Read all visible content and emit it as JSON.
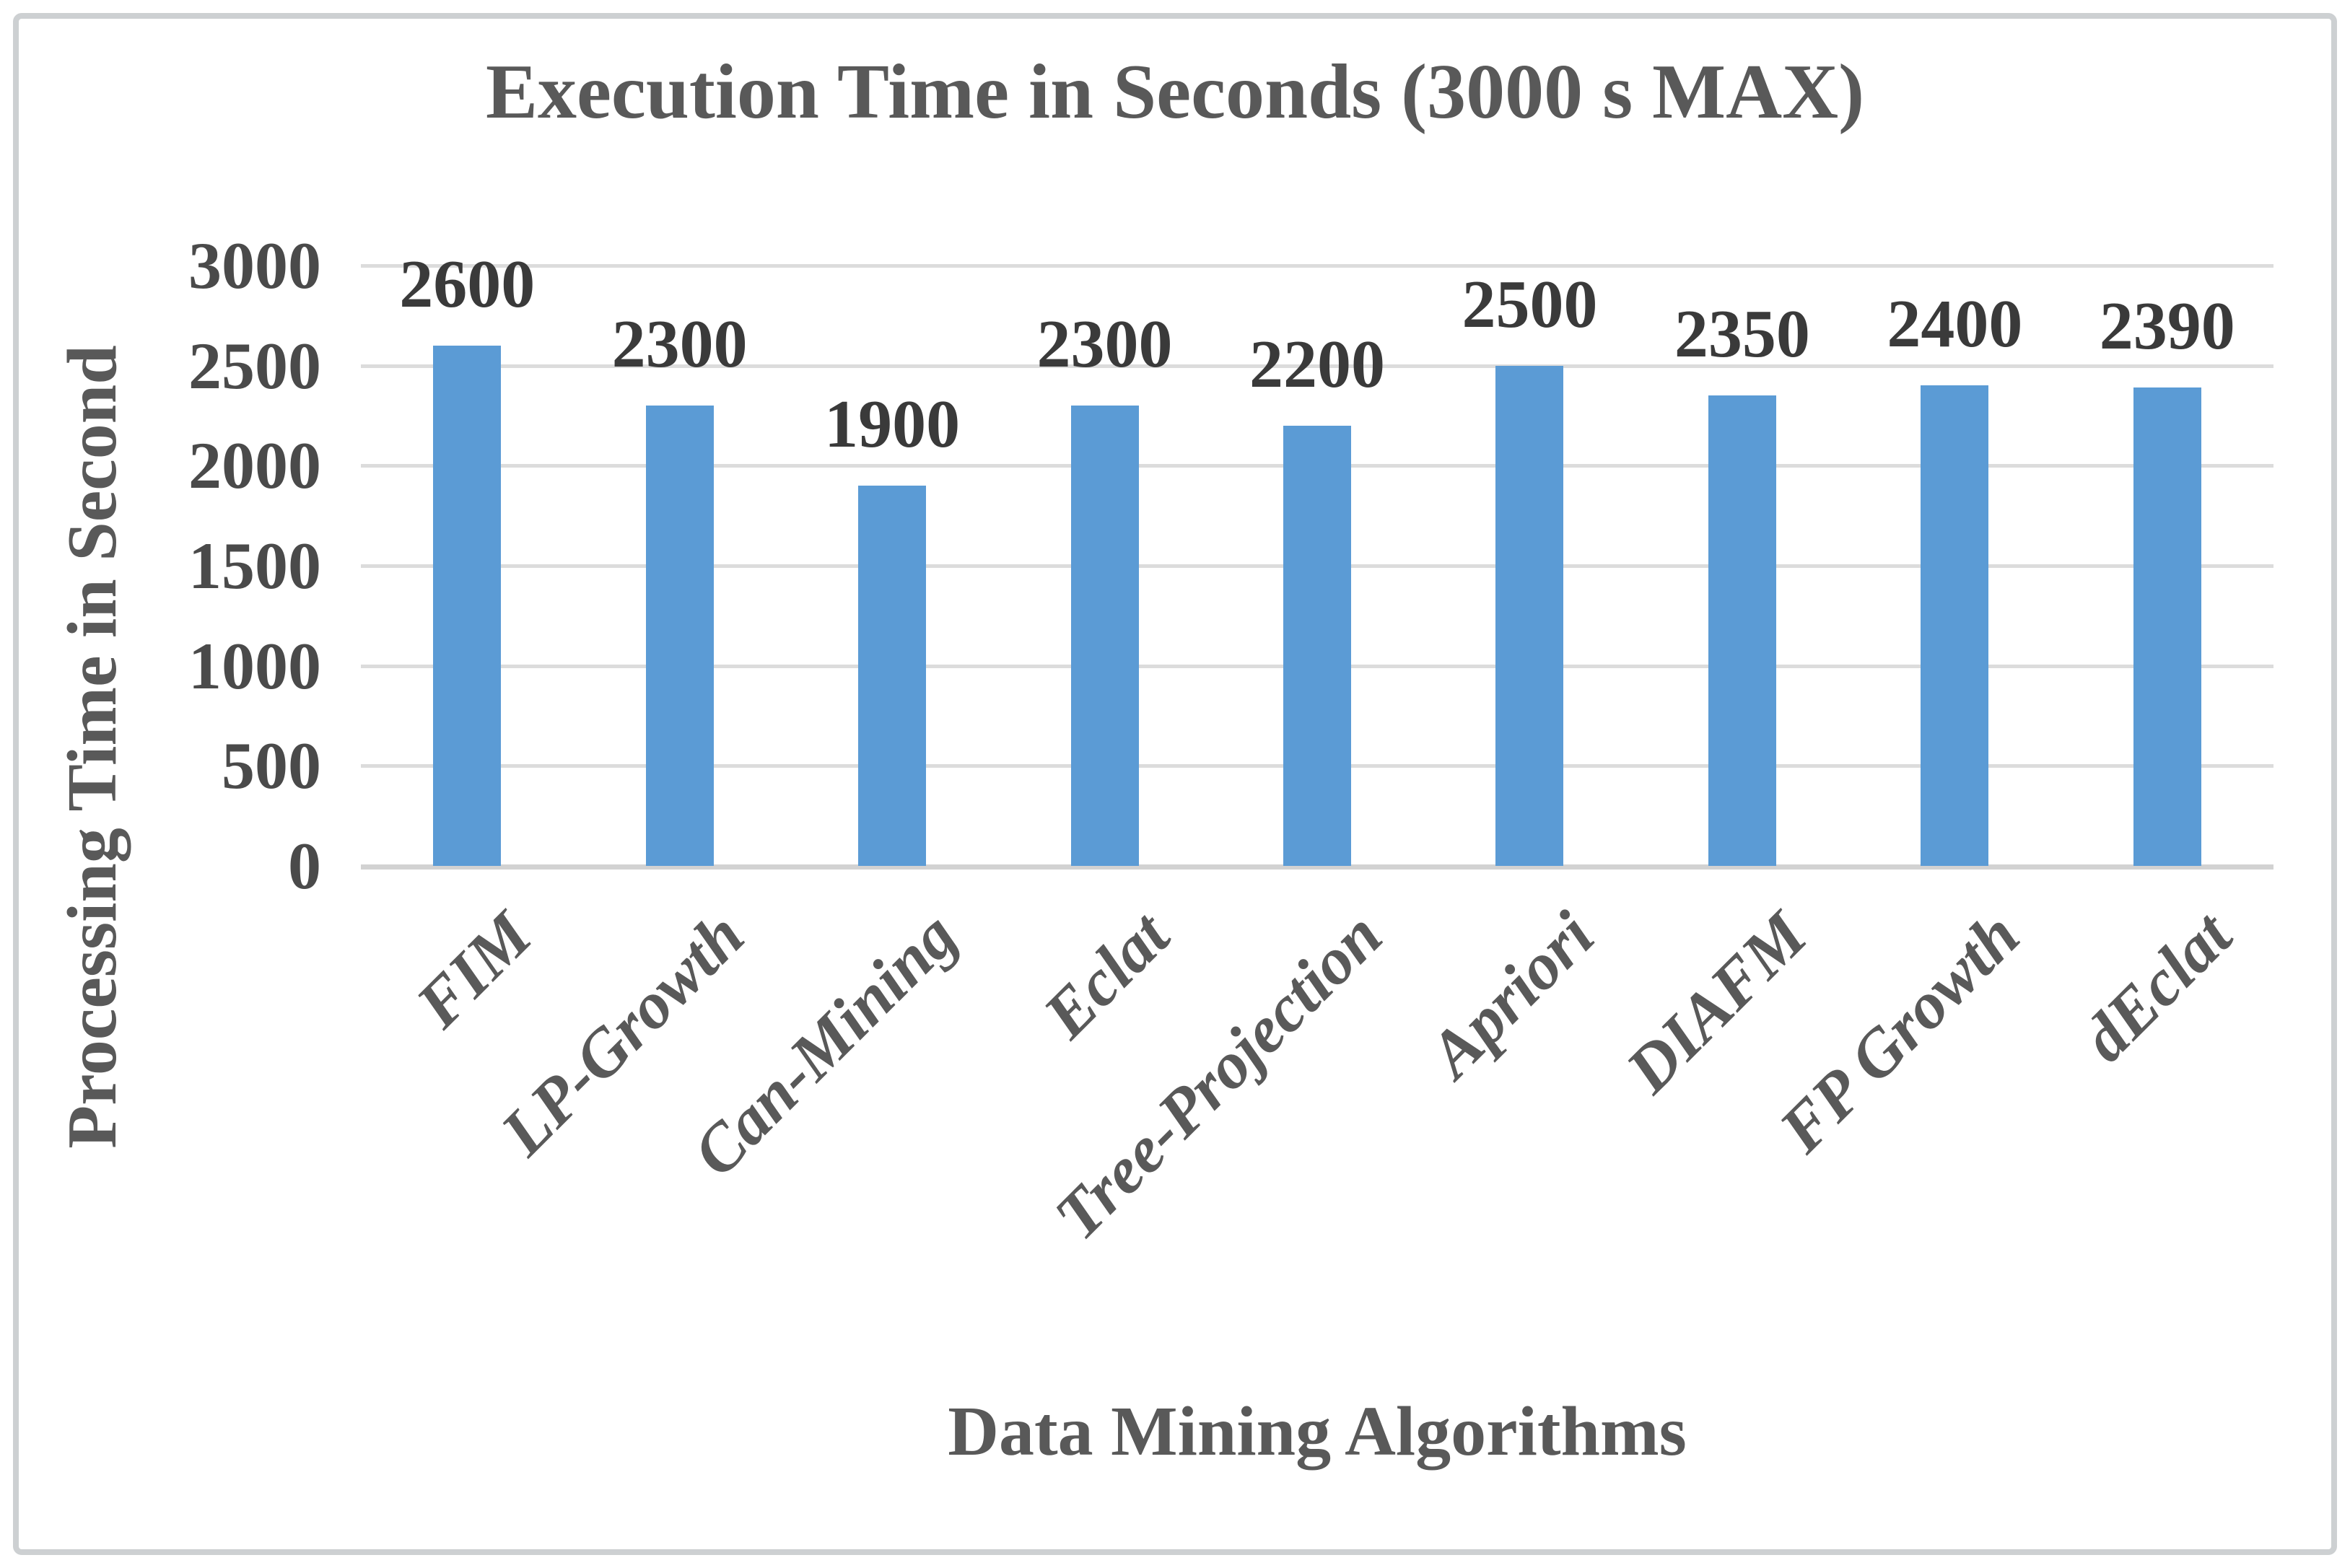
{
  "chart_data": {
    "type": "bar",
    "title": "Execution Time in Seconds (3000 s MAX)",
    "xlabel": "Data Mining Algorithms",
    "ylabel": "Processing Time in Second",
    "categories": [
      "FIM",
      "LP-Growth",
      "Can-Mining",
      "Eclat",
      "Tree-Projection",
      "Apriori",
      "DIAFM",
      "FP Growth",
      "dEclat"
    ],
    "values": [
      2600,
      2300,
      1900,
      2300,
      2200,
      2500,
      2350,
      2400,
      2390
    ],
    "data_labels": [
      "2600",
      "2300",
      "1900",
      "2300",
      "2200",
      "2500",
      "2350",
      "2400",
      "2390"
    ],
    "ylim": [
      0,
      3000
    ],
    "yticks": [
      3000,
      2500,
      2000,
      1500,
      1000,
      500,
      0
    ],
    "grid": true,
    "legend": false,
    "bar_color": "#5b9bd5",
    "gridline_color": "#dcdcdc",
    "title_color": "#595959",
    "tick_color": "#4a4a4a",
    "value_label_color": "#3a3a3a"
  }
}
